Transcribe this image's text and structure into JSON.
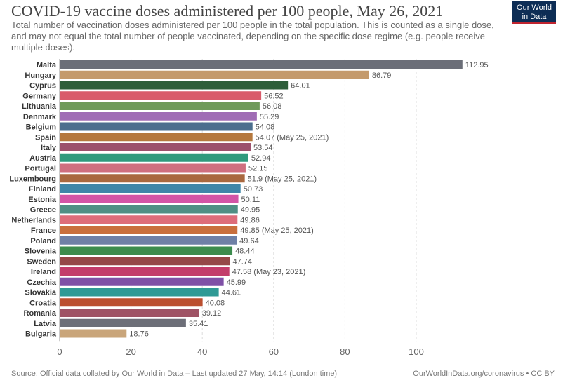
{
  "header": {
    "title": "COVID-19 vaccine doses administered per 100 people, May 26, 2021",
    "subtitle": "Total number of vaccination doses administered per 100 people in the total population. This is counted as a single dose, and may not equal the total number of people vaccinated, depending on the specific dose regime (e.g. people receive multiple doses).",
    "logo_line1": "Our World",
    "logo_line2": "in Data"
  },
  "footer": {
    "source": "Source: Official data collated by Our World in Data – Last updated 27 May, 14:14 (London time)",
    "credit": "OurWorldInData.org/coronavirus • CC BY"
  },
  "colors": {
    "logo_bg": "#0d2d55",
    "logo_accent": "#c0242f"
  },
  "chart_data": {
    "type": "bar",
    "orientation": "horizontal",
    "title": "COVID-19 vaccine doses administered per 100 people, May 26, 2021",
    "xlabel": "",
    "ylabel": "",
    "xlim": [
      0,
      120
    ],
    "xticks": [
      0,
      20,
      40,
      60,
      80,
      100
    ],
    "grid": true,
    "categories": [
      "Malta",
      "Hungary",
      "Cyprus",
      "Germany",
      "Lithuania",
      "Denmark",
      "Belgium",
      "Spain",
      "Italy",
      "Austria",
      "Portugal",
      "Luxembourg",
      "Finland",
      "Estonia",
      "Greece",
      "Netherlands",
      "France",
      "Poland",
      "Slovenia",
      "Sweden",
      "Ireland",
      "Czechia",
      "Slovakia",
      "Croatia",
      "Romania",
      "Latvia",
      "Bulgaria"
    ],
    "values": [
      112.95,
      86.79,
      64.01,
      56.52,
      56.08,
      55.29,
      54.08,
      54.07,
      53.54,
      52.94,
      52.15,
      51.9,
      50.73,
      50.11,
      49.95,
      49.86,
      49.85,
      49.64,
      48.44,
      47.74,
      47.58,
      45.99,
      44.61,
      40.08,
      39.12,
      35.41,
      18.76
    ],
    "value_labels": [
      "112.95",
      "86.79",
      "64.01",
      "56.52",
      "56.08",
      "55.29",
      "54.08",
      "54.07 (May 25, 2021)",
      "53.54",
      "52.94",
      "52.15",
      "51.9 (May 25, 2021)",
      "50.73",
      "50.11",
      "49.95",
      "49.86",
      "49.85 (May 25, 2021)",
      "49.64",
      "48.44",
      "47.74",
      "47.58 (May 23, 2021)",
      "45.99",
      "44.61",
      "40.08",
      "39.12",
      "35.41",
      "18.76"
    ],
    "colors": [
      "#6b6e78",
      "#c49a6c",
      "#2e5e3a",
      "#d95b6a",
      "#6f9a5a",
      "#a06cb5",
      "#4b6e8e",
      "#b5783e",
      "#9c506c",
      "#2f9a7d",
      "#cf6f7f",
      "#a9683f",
      "#3f86a8",
      "#d355a6",
      "#4f8f84",
      "#dd6d7a",
      "#c96f3d",
      "#6f80a6",
      "#3c8c4d",
      "#954848",
      "#c33c6a",
      "#7f50a6",
      "#2f9a95",
      "#bb4f2f",
      "#9f5365",
      "#6d6f78",
      "#c9a57a"
    ]
  }
}
